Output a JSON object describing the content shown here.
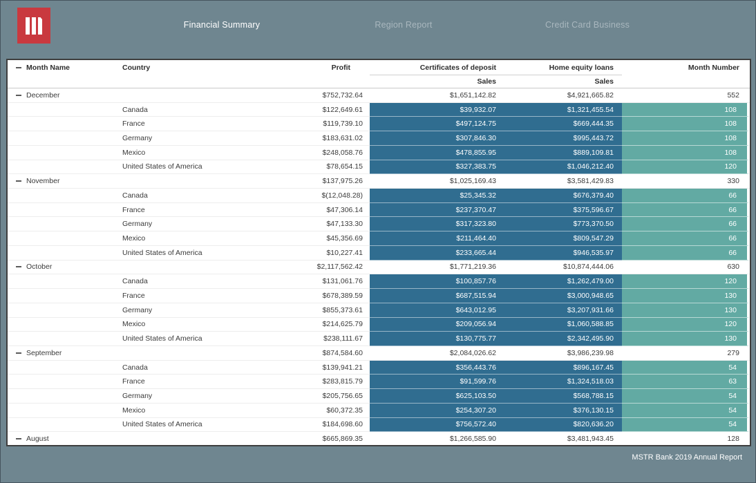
{
  "topbar": {
    "logo": "microstrategy-logo",
    "tabs": [
      {
        "label": "Financial Summary",
        "active": true
      },
      {
        "label": "Region Report",
        "active": false
      },
      {
        "label": "Credit Card Business",
        "active": false
      }
    ]
  },
  "grid": {
    "headers": {
      "month_name": "Month Name",
      "country": "Country",
      "profit": "Profit",
      "certificates": "Certificates of deposit",
      "home_equity": "Home equity loans",
      "month_number": "Month Number",
      "sales": "Sales"
    },
    "groups": [
      {
        "month": "December",
        "summary": {
          "profit": "$752,732.64",
          "certificates": "$1,651,142.82",
          "home_equity": "$4,921,665.82",
          "month_number": "552"
        },
        "rows": [
          {
            "country": "Canada",
            "profit": "$122,649.61",
            "certificates": "$39,932.07",
            "home_equity": "$1,321,455.54",
            "month_number": "108"
          },
          {
            "country": "France",
            "profit": "$119,739.10",
            "certificates": "$497,124.75",
            "home_equity": "$669,444.35",
            "month_number": "108"
          },
          {
            "country": "Germany",
            "profit": "$183,631.02",
            "certificates": "$307,846.30",
            "home_equity": "$995,443.72",
            "month_number": "108"
          },
          {
            "country": "Mexico",
            "profit": "$248,058.76",
            "certificates": "$478,855.95",
            "home_equity": "$889,109.81",
            "month_number": "108"
          },
          {
            "country": "United States of America",
            "profit": "$78,654.15",
            "certificates": "$327,383.75",
            "home_equity": "$1,046,212.40",
            "month_number": "120"
          }
        ]
      },
      {
        "month": "November",
        "summary": {
          "profit": "$137,975.26",
          "certificates": "$1,025,169.43",
          "home_equity": "$3,581,429.83",
          "month_number": "330"
        },
        "rows": [
          {
            "country": "Canada",
            "profit": "$(12,048.28)",
            "certificates": "$25,345.32",
            "home_equity": "$676,379.40",
            "month_number": "66"
          },
          {
            "country": "France",
            "profit": "$47,306.14",
            "certificates": "$237,370.47",
            "home_equity": "$375,596.67",
            "month_number": "66"
          },
          {
            "country": "Germany",
            "profit": "$47,133.30",
            "certificates": "$317,323.80",
            "home_equity": "$773,370.50",
            "month_number": "66"
          },
          {
            "country": "Mexico",
            "profit": "$45,356.69",
            "certificates": "$211,464.40",
            "home_equity": "$809,547.29",
            "month_number": "66"
          },
          {
            "country": "United States of America",
            "profit": "$10,227.41",
            "certificates": "$233,665.44",
            "home_equity": "$946,535.97",
            "month_number": "66"
          }
        ]
      },
      {
        "month": "October",
        "summary": {
          "profit": "$2,117,562.42",
          "certificates": "$1,771,219.36",
          "home_equity": "$10,874,444.06",
          "month_number": "630"
        },
        "rows": [
          {
            "country": "Canada",
            "profit": "$131,061.76",
            "certificates": "$100,857.76",
            "home_equity": "$1,262,479.00",
            "month_number": "120"
          },
          {
            "country": "France",
            "profit": "$678,389.59",
            "certificates": "$687,515.94",
            "home_equity": "$3,000,948.65",
            "month_number": "130"
          },
          {
            "country": "Germany",
            "profit": "$855,373.61",
            "certificates": "$643,012.95",
            "home_equity": "$3,207,931.66",
            "month_number": "130"
          },
          {
            "country": "Mexico",
            "profit": "$214,625.79",
            "certificates": "$209,056.94",
            "home_equity": "$1,060,588.85",
            "month_number": "120"
          },
          {
            "country": "United States of America",
            "profit": "$238,111.67",
            "certificates": "$130,775.77",
            "home_equity": "$2,342,495.90",
            "month_number": "130"
          }
        ]
      },
      {
        "month": "September",
        "summary": {
          "profit": "$874,584.60",
          "certificates": "$2,084,026.62",
          "home_equity": "$3,986,239.98",
          "month_number": "279"
        },
        "rows": [
          {
            "country": "Canada",
            "profit": "$139,941.21",
            "certificates": "$356,443.76",
            "home_equity": "$896,167.45",
            "month_number": "54"
          },
          {
            "country": "France",
            "profit": "$283,815.79",
            "certificates": "$91,599.76",
            "home_equity": "$1,324,518.03",
            "month_number": "63"
          },
          {
            "country": "Germany",
            "profit": "$205,756.65",
            "certificates": "$625,103.50",
            "home_equity": "$568,788.15",
            "month_number": "54"
          },
          {
            "country": "Mexico",
            "profit": "$60,372.35",
            "certificates": "$254,307.20",
            "home_equity": "$376,130.15",
            "month_number": "54"
          },
          {
            "country": "United States of America",
            "profit": "$184,698.60",
            "certificates": "$756,572.40",
            "home_equity": "$820,636.20",
            "month_number": "54"
          }
        ]
      },
      {
        "month": "August",
        "summary": {
          "profit": "$665,869.35",
          "certificates": "$1,266,585.90",
          "home_equity": "$3,481,943.45",
          "month_number": "128"
        },
        "rows": []
      }
    ]
  },
  "footer": {
    "label": "MSTR Bank 2019 Annual Report"
  },
  "colors": {
    "background": "#6f8690",
    "logo_red": "#c9393f",
    "cell_blue": "#306d90",
    "cell_teal": "#62aaa3",
    "active_tab_text": "#ffffff",
    "inactive_tab_text": "#a9b7be"
  }
}
